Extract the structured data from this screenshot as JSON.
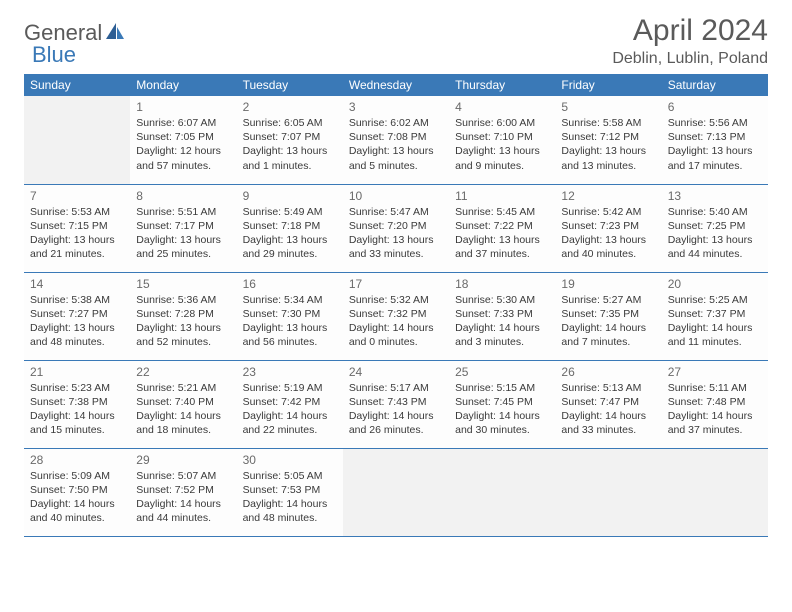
{
  "logo": {
    "text1": "General",
    "text2": "Blue",
    "color_general": "#5a5a5a",
    "color_blue": "#3a79b7"
  },
  "title": "April 2024",
  "location": "Deblin, Lublin, Poland",
  "header_bg": "#3a79b7",
  "header_fg": "#ffffff",
  "empty_bg": "#f2f2f2",
  "day_headers": [
    "Sunday",
    "Monday",
    "Tuesday",
    "Wednesday",
    "Thursday",
    "Friday",
    "Saturday"
  ],
  "weeks": [
    [
      null,
      {
        "n": "1",
        "sr": "Sunrise: 6:07 AM",
        "ss": "Sunset: 7:05 PM",
        "d1": "Daylight: 12 hours",
        "d2": "and 57 minutes."
      },
      {
        "n": "2",
        "sr": "Sunrise: 6:05 AM",
        "ss": "Sunset: 7:07 PM",
        "d1": "Daylight: 13 hours",
        "d2": "and 1 minutes."
      },
      {
        "n": "3",
        "sr": "Sunrise: 6:02 AM",
        "ss": "Sunset: 7:08 PM",
        "d1": "Daylight: 13 hours",
        "d2": "and 5 minutes."
      },
      {
        "n": "4",
        "sr": "Sunrise: 6:00 AM",
        "ss": "Sunset: 7:10 PM",
        "d1": "Daylight: 13 hours",
        "d2": "and 9 minutes."
      },
      {
        "n": "5",
        "sr": "Sunrise: 5:58 AM",
        "ss": "Sunset: 7:12 PM",
        "d1": "Daylight: 13 hours",
        "d2": "and 13 minutes."
      },
      {
        "n": "6",
        "sr": "Sunrise: 5:56 AM",
        "ss": "Sunset: 7:13 PM",
        "d1": "Daylight: 13 hours",
        "d2": "and 17 minutes."
      }
    ],
    [
      {
        "n": "7",
        "sr": "Sunrise: 5:53 AM",
        "ss": "Sunset: 7:15 PM",
        "d1": "Daylight: 13 hours",
        "d2": "and 21 minutes."
      },
      {
        "n": "8",
        "sr": "Sunrise: 5:51 AM",
        "ss": "Sunset: 7:17 PM",
        "d1": "Daylight: 13 hours",
        "d2": "and 25 minutes."
      },
      {
        "n": "9",
        "sr": "Sunrise: 5:49 AM",
        "ss": "Sunset: 7:18 PM",
        "d1": "Daylight: 13 hours",
        "d2": "and 29 minutes."
      },
      {
        "n": "10",
        "sr": "Sunrise: 5:47 AM",
        "ss": "Sunset: 7:20 PM",
        "d1": "Daylight: 13 hours",
        "d2": "and 33 minutes."
      },
      {
        "n": "11",
        "sr": "Sunrise: 5:45 AM",
        "ss": "Sunset: 7:22 PM",
        "d1": "Daylight: 13 hours",
        "d2": "and 37 minutes."
      },
      {
        "n": "12",
        "sr": "Sunrise: 5:42 AM",
        "ss": "Sunset: 7:23 PM",
        "d1": "Daylight: 13 hours",
        "d2": "and 40 minutes."
      },
      {
        "n": "13",
        "sr": "Sunrise: 5:40 AM",
        "ss": "Sunset: 7:25 PM",
        "d1": "Daylight: 13 hours",
        "d2": "and 44 minutes."
      }
    ],
    [
      {
        "n": "14",
        "sr": "Sunrise: 5:38 AM",
        "ss": "Sunset: 7:27 PM",
        "d1": "Daylight: 13 hours",
        "d2": "and 48 minutes."
      },
      {
        "n": "15",
        "sr": "Sunrise: 5:36 AM",
        "ss": "Sunset: 7:28 PM",
        "d1": "Daylight: 13 hours",
        "d2": "and 52 minutes."
      },
      {
        "n": "16",
        "sr": "Sunrise: 5:34 AM",
        "ss": "Sunset: 7:30 PM",
        "d1": "Daylight: 13 hours",
        "d2": "and 56 minutes."
      },
      {
        "n": "17",
        "sr": "Sunrise: 5:32 AM",
        "ss": "Sunset: 7:32 PM",
        "d1": "Daylight: 14 hours",
        "d2": "and 0 minutes."
      },
      {
        "n": "18",
        "sr": "Sunrise: 5:30 AM",
        "ss": "Sunset: 7:33 PM",
        "d1": "Daylight: 14 hours",
        "d2": "and 3 minutes."
      },
      {
        "n": "19",
        "sr": "Sunrise: 5:27 AM",
        "ss": "Sunset: 7:35 PM",
        "d1": "Daylight: 14 hours",
        "d2": "and 7 minutes."
      },
      {
        "n": "20",
        "sr": "Sunrise: 5:25 AM",
        "ss": "Sunset: 7:37 PM",
        "d1": "Daylight: 14 hours",
        "d2": "and 11 minutes."
      }
    ],
    [
      {
        "n": "21",
        "sr": "Sunrise: 5:23 AM",
        "ss": "Sunset: 7:38 PM",
        "d1": "Daylight: 14 hours",
        "d2": "and 15 minutes."
      },
      {
        "n": "22",
        "sr": "Sunrise: 5:21 AM",
        "ss": "Sunset: 7:40 PM",
        "d1": "Daylight: 14 hours",
        "d2": "and 18 minutes."
      },
      {
        "n": "23",
        "sr": "Sunrise: 5:19 AM",
        "ss": "Sunset: 7:42 PM",
        "d1": "Daylight: 14 hours",
        "d2": "and 22 minutes."
      },
      {
        "n": "24",
        "sr": "Sunrise: 5:17 AM",
        "ss": "Sunset: 7:43 PM",
        "d1": "Daylight: 14 hours",
        "d2": "and 26 minutes."
      },
      {
        "n": "25",
        "sr": "Sunrise: 5:15 AM",
        "ss": "Sunset: 7:45 PM",
        "d1": "Daylight: 14 hours",
        "d2": "and 30 minutes."
      },
      {
        "n": "26",
        "sr": "Sunrise: 5:13 AM",
        "ss": "Sunset: 7:47 PM",
        "d1": "Daylight: 14 hours",
        "d2": "and 33 minutes."
      },
      {
        "n": "27",
        "sr": "Sunrise: 5:11 AM",
        "ss": "Sunset: 7:48 PM",
        "d1": "Daylight: 14 hours",
        "d2": "and 37 minutes."
      }
    ],
    [
      {
        "n": "28",
        "sr": "Sunrise: 5:09 AM",
        "ss": "Sunset: 7:50 PM",
        "d1": "Daylight: 14 hours",
        "d2": "and 40 minutes."
      },
      {
        "n": "29",
        "sr": "Sunrise: 5:07 AM",
        "ss": "Sunset: 7:52 PM",
        "d1": "Daylight: 14 hours",
        "d2": "and 44 minutes."
      },
      {
        "n": "30",
        "sr": "Sunrise: 5:05 AM",
        "ss": "Sunset: 7:53 PM",
        "d1": "Daylight: 14 hours",
        "d2": "and 48 minutes."
      },
      null,
      null,
      null,
      null
    ]
  ]
}
